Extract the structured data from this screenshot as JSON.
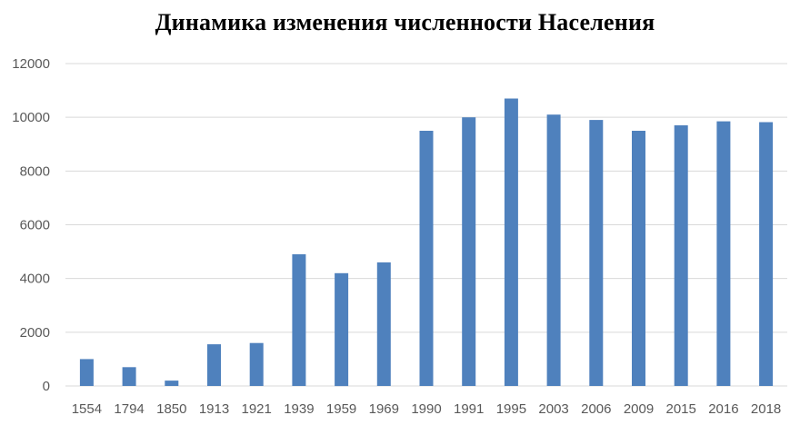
{
  "chart_data": {
    "type": "bar",
    "title": "Динамика изменения численности Населения",
    "xlabel": "",
    "ylabel": "",
    "categories": [
      "1554",
      "1794",
      "1850",
      "1913",
      "1921",
      "1939",
      "1959",
      "1969",
      "1990",
      "1991",
      "1995",
      "2003",
      "2006",
      "2009",
      "2015",
      "2016",
      "2018"
    ],
    "values": [
      1000,
      700,
      200,
      1550,
      1600,
      4900,
      4200,
      4600,
      9500,
      10000,
      10700,
      10100,
      9900,
      9500,
      9700,
      9850,
      9820
    ],
    "ylim": [
      0,
      12000
    ],
    "yticks": [
      "0",
      "2000",
      "4000",
      "6000",
      "8000",
      "10000",
      "12000"
    ],
    "grid": true,
    "legend": "none",
    "colors": {
      "bar": "#4f81bd",
      "grid": "#d9d9d9",
      "tick_text": "#595959",
      "title": "#000000"
    }
  }
}
